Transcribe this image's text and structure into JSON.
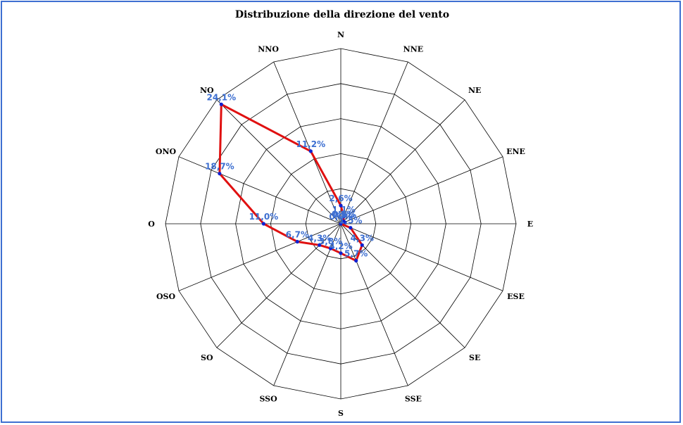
{
  "chart_data": {
    "type": "radar",
    "title": "Distribuzione della direzione del vento",
    "categories": [
      "N",
      "NNE",
      "NE",
      "ENE",
      "E",
      "ESE",
      "SE",
      "SSE",
      "S",
      "SSO",
      "SO",
      "OSO",
      "O",
      "ONO",
      "NO",
      "NNO"
    ],
    "series": [
      {
        "values": [
          2.6,
          1.1,
          0.5,
          0.6,
          0.0,
          1.5,
          4.3,
          5.7,
          4.2,
          3.8,
          4.3,
          6.7,
          11.0,
          18.7,
          24.1,
          11.2
        ],
        "value_labels": [
          "2,6%",
          "1,1%",
          "0,5%",
          "0,6%",
          "0,0%",
          "1,5%",
          "4,3%",
          "5,7%",
          "4,2%",
          "3,8%",
          "4,3%",
          "6,7%",
          "11,0%",
          "18,7%",
          "24,1%",
          "11,2%"
        ]
      }
    ],
    "rlim": [
      0,
      25
    ],
    "rings": 5,
    "grid": true,
    "colors": {
      "line": "#e01010",
      "marker": "#1020d0",
      "grid": "#000000",
      "labels": "#3d6fd1",
      "frame": "#3e6fd1"
    }
  }
}
